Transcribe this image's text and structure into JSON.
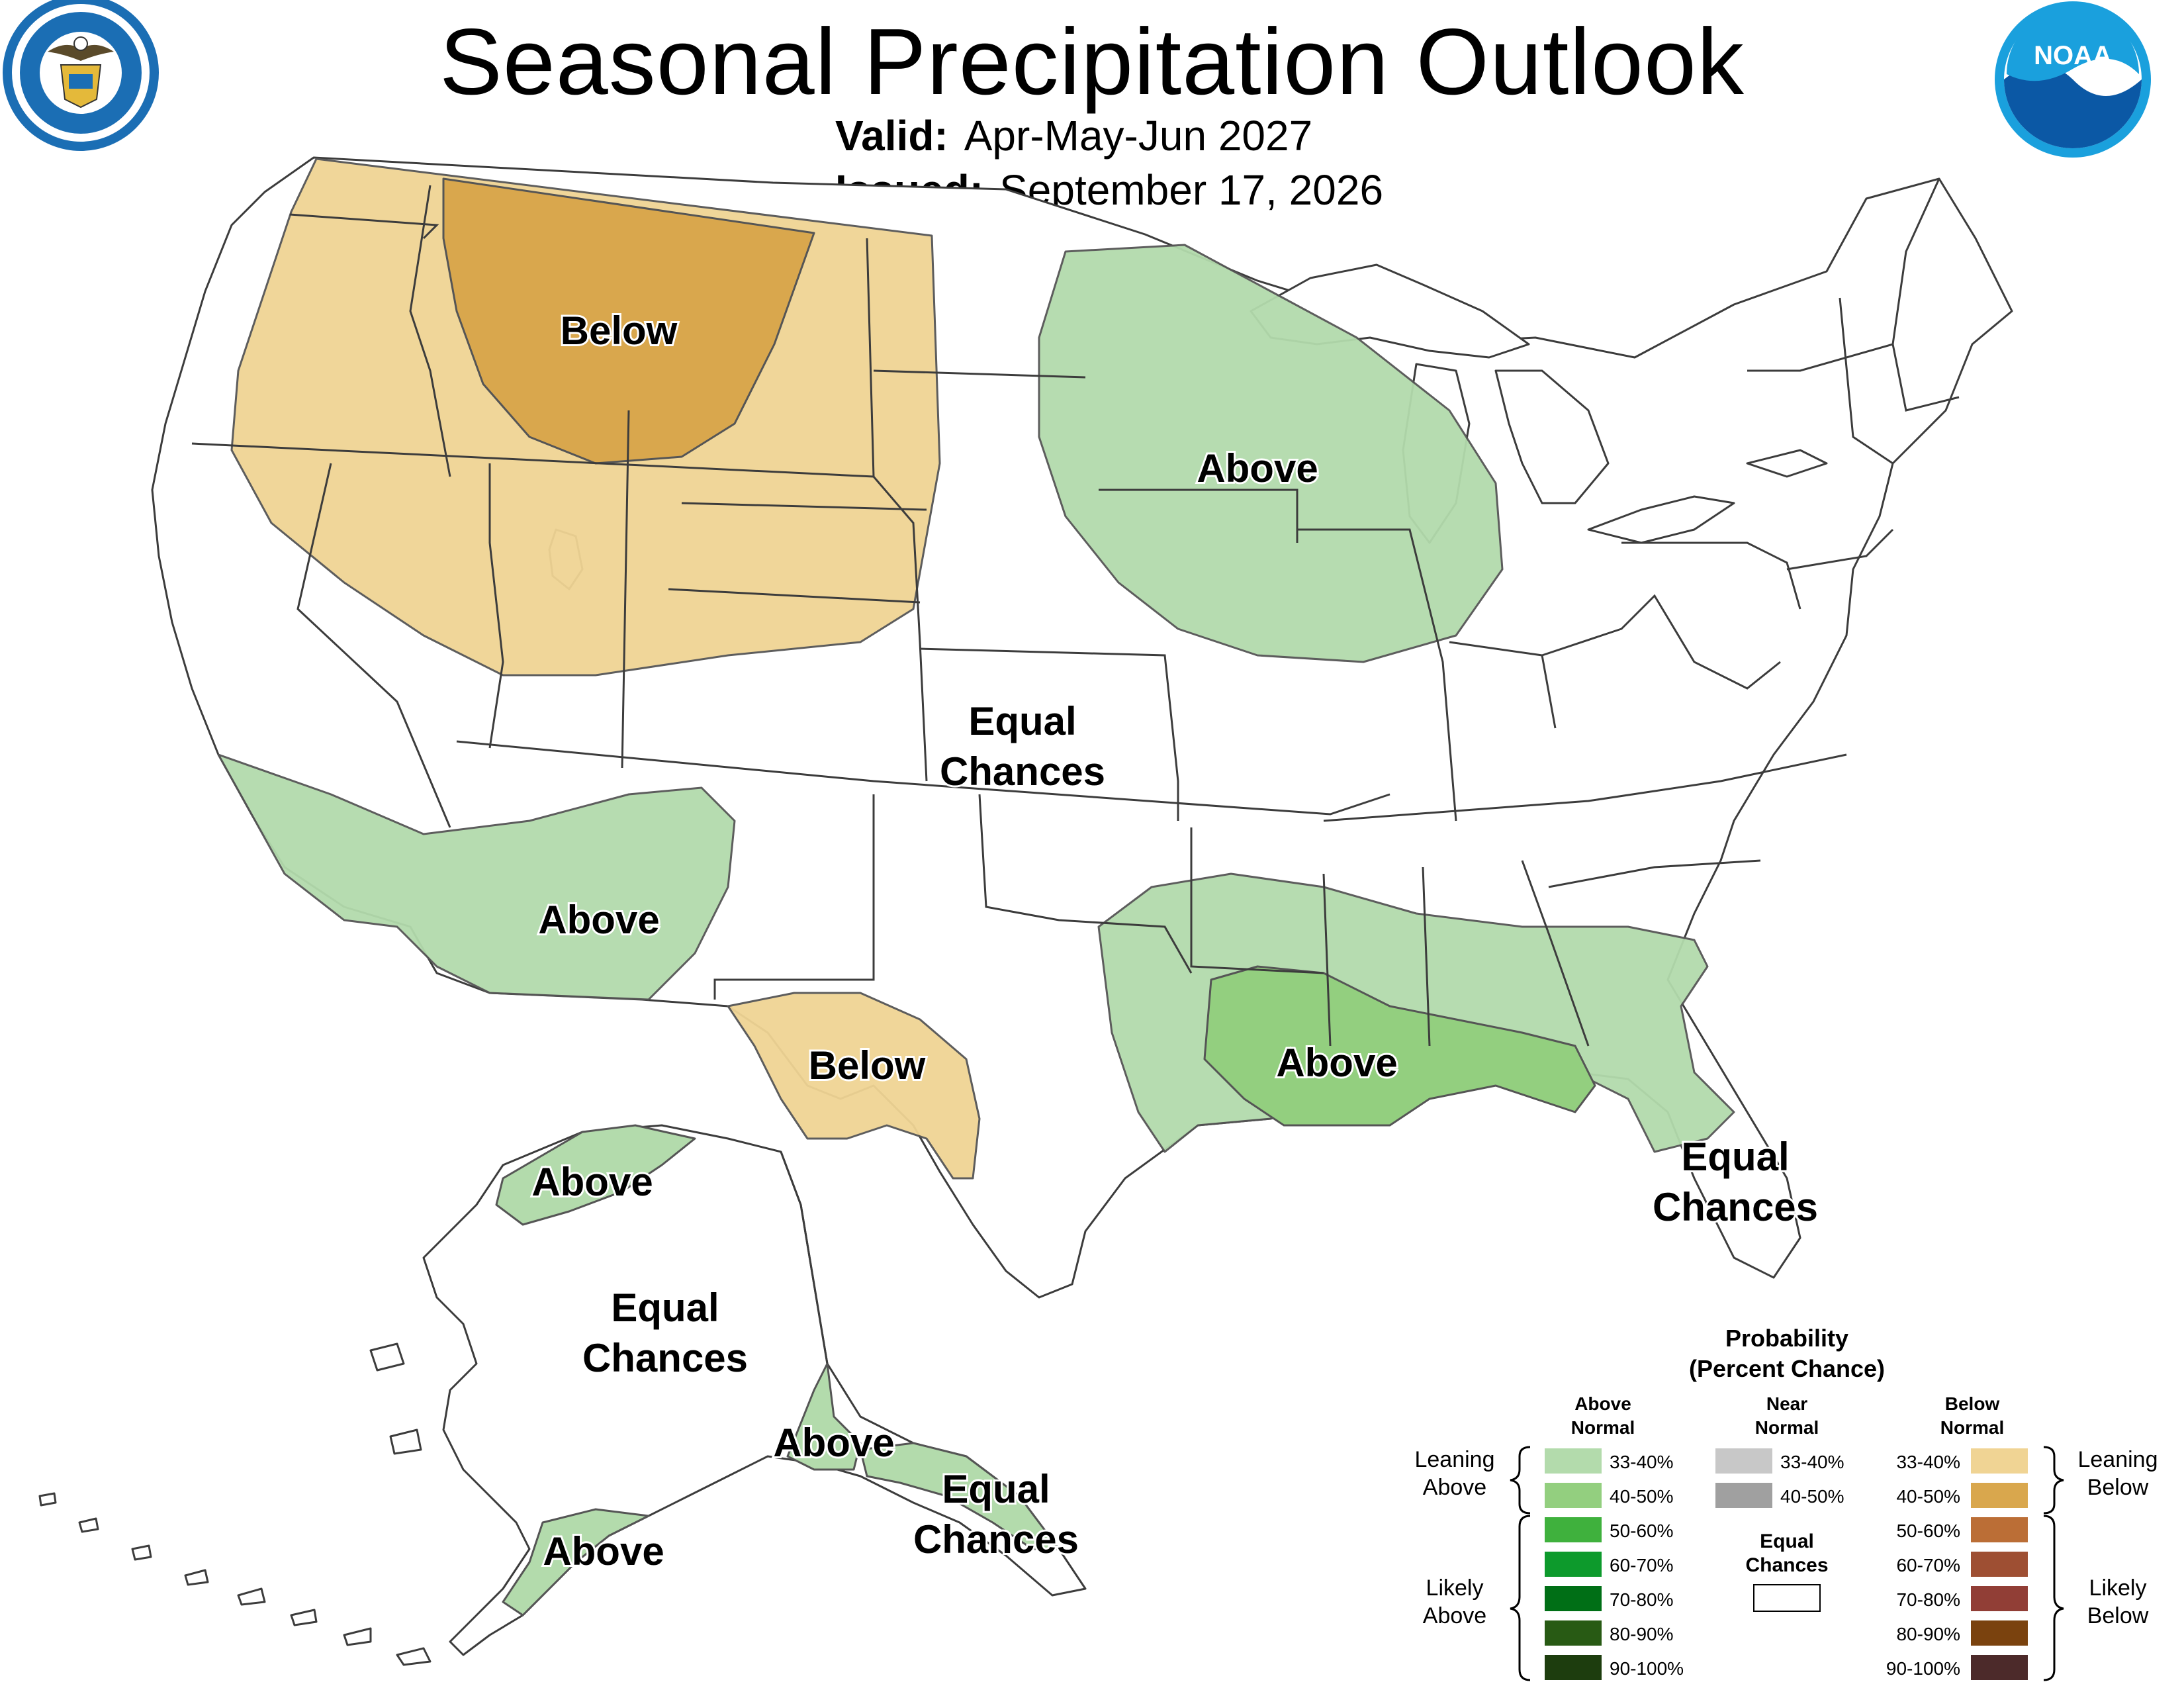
{
  "header": {
    "title": "Seasonal Precipitation Outlook",
    "valid_label": "Valid:",
    "valid_value": "Apr-May-Jun 2027",
    "issued_label": "Issued:",
    "issued_value": "September 17, 2026"
  },
  "logos": {
    "commerce_seal": "DEPARTMENT OF COMMERCE · UNITED STATES OF AMERICA",
    "noaa": "NOAA"
  },
  "map_labels": {
    "conus_below_north": "Below",
    "conus_above_midwest": "Above",
    "conus_equal_center_1": "Equal",
    "conus_equal_center_2": "Chances",
    "conus_above_southwest": "Above",
    "conus_below_texas": "Below",
    "conus_above_southeast": "Above",
    "conus_equal_florida_1": "Equal",
    "conus_equal_florida_2": "Chances",
    "ak_above_north": "Above",
    "ak_equal_center_1": "Equal",
    "ak_equal_center_2": "Chances",
    "ak_above_south": "Above",
    "ak_equal_panhandle_1": "Equal",
    "ak_equal_panhandle_2": "Chances",
    "ak_above_west": "Above"
  },
  "legend": {
    "title_1": "Probability",
    "title_2": "(Percent Chance)",
    "above_head_1": "Above",
    "above_head_2": "Normal",
    "near_head_1": "Near",
    "near_head_2": "Normal",
    "below_head_1": "Below",
    "below_head_2": "Normal",
    "leaning_above_1": "Leaning",
    "leaning_above_2": "Above",
    "likely_above_1": "Likely",
    "likely_above_2": "Above",
    "leaning_below_1": "Leaning",
    "leaning_below_2": "Below",
    "likely_below_1": "Likely",
    "likely_below_2": "Below",
    "equal_1": "Equal",
    "equal_2": "Chances",
    "above_levels": [
      {
        "label": "33-40%",
        "color": "#b3dbac"
      },
      {
        "label": "40-50%",
        "color": "#93cf7f"
      },
      {
        "label": "50-60%",
        "color": "#3fb13d"
      },
      {
        "label": "60-70%",
        "color": "#0d9a2c"
      },
      {
        "label": "70-80%",
        "color": "#006f16"
      },
      {
        "label": "80-90%",
        "color": "#285a14"
      },
      {
        "label": "90-100%",
        "color": "#1d3d0e"
      }
    ],
    "near_levels": [
      {
        "label": "33-40%",
        "color": "#c8c8c8"
      },
      {
        "label": "40-50%",
        "color": "#a0a0a0"
      }
    ],
    "below_levels": [
      {
        "label": "33-40%",
        "color": "#f0d494"
      },
      {
        "label": "40-50%",
        "color": "#d9a74d"
      },
      {
        "label": "50-60%",
        "color": "#bb6e36"
      },
      {
        "label": "60-70%",
        "color": "#9e4f33"
      },
      {
        "label": "70-80%",
        "color": "#913e36"
      },
      {
        "label": "80-90%",
        "color": "#7a420e"
      },
      {
        "label": "90-100%",
        "color": "#4c2a2a"
      }
    ],
    "equal_color": "#ffffff"
  }
}
